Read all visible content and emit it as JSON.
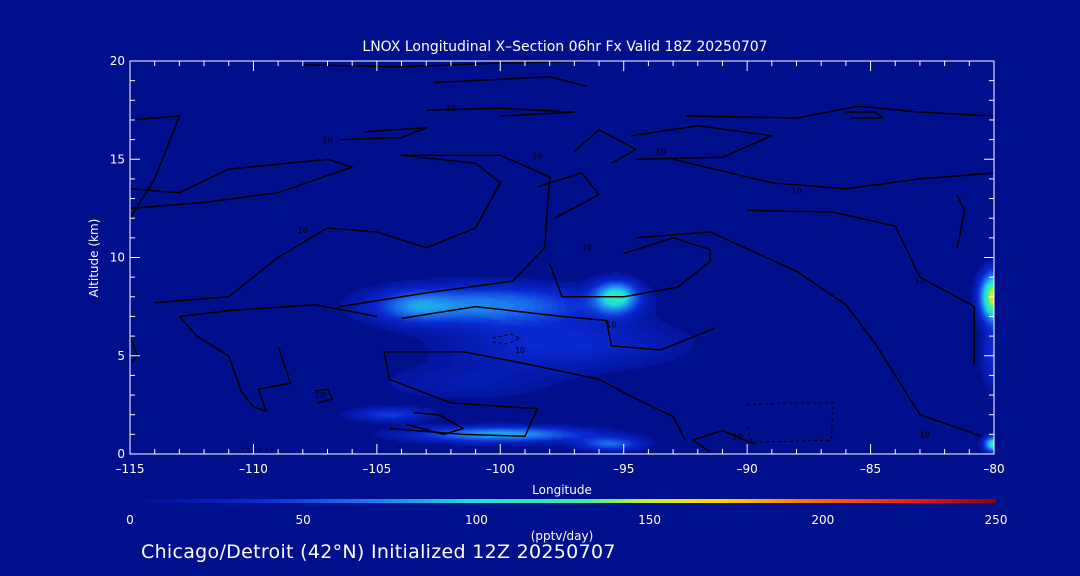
{
  "chart_data": {
    "type": "heatmap",
    "title": "LNOX Longitudinal X–Section 06hr  Fx Valid 18Z 20250707",
    "xlabel": "Longitude",
    "ylabel": "Altitude (km)",
    "xlim": [
      -115,
      -80
    ],
    "ylim": [
      0,
      20
    ],
    "x_ticks": [
      -115,
      -110,
      -105,
      -100,
      -95,
      -90,
      -85,
      -80
    ],
    "x_tick_labels": [
      "–115",
      "–110",
      "–105",
      "–100",
      "–95",
      "–90",
      "–85",
      "–80"
    ],
    "y_ticks": [
      0,
      5,
      10,
      15,
      20
    ],
    "y_tick_labels": [
      "0",
      "5",
      "10",
      "15",
      "20"
    ],
    "colorbar": {
      "label": "(pptv/day)",
      "range": [
        0,
        250
      ],
      "ticks": [
        0,
        50,
        100,
        150,
        200,
        250
      ],
      "tick_labels": [
        "0",
        "50",
        "100",
        "150",
        "200",
        "250"
      ]
    },
    "blobs": [
      {
        "lon": -100.5,
        "alt": 7.6,
        "slon": 4.2,
        "salt": 1.0,
        "amp": 70
      },
      {
        "lon": -97.5,
        "alt": 5.6,
        "slon": 4.6,
        "salt": 1.3,
        "amp": 38
      },
      {
        "lon": -101.5,
        "alt": 3.6,
        "slon": 3.8,
        "salt": 1.0,
        "amp": 18
      },
      {
        "lon": -95.3,
        "alt": 8.0,
        "slon": 0.9,
        "salt": 0.8,
        "amp": 105
      },
      {
        "lon": -103.5,
        "alt": 7.5,
        "slon": 1.5,
        "salt": 0.8,
        "amp": 40
      },
      {
        "lon": -100.0,
        "alt": 1.0,
        "slon": 3.5,
        "salt": 0.4,
        "amp": 85
      },
      {
        "lon": -95.5,
        "alt": 0.5,
        "slon": 1.3,
        "salt": 0.35,
        "amp": 60
      },
      {
        "lon": -104.5,
        "alt": 2.0,
        "slon": 1.6,
        "salt": 0.35,
        "amp": 45
      },
      {
        "lon": -80.0,
        "alt": 8.0,
        "slon": 0.55,
        "salt": 1.2,
        "amp": 160
      },
      {
        "lon": -80.0,
        "alt": 5.0,
        "slon": 0.5,
        "salt": 1.6,
        "amp": 40
      },
      {
        "lon": -80.0,
        "alt": 0.5,
        "slon": 0.4,
        "salt": 0.4,
        "amp": 120
      }
    ],
    "contours": [
      [
        [
          -115,
          17
        ],
        [
          -113,
          17.2
        ],
        [
          -114,
          14
        ],
        [
          -115,
          12
        ]
      ],
      [
        [
          -106.5,
          16
        ],
        [
          -104,
          16.1
        ],
        [
          -103,
          16.6
        ],
        [
          -105.5,
          16.4
        ]
      ],
      [
        [
          -103,
          17.5
        ],
        [
          -100,
          17.6
        ],
        [
          -97,
          17.4
        ],
        [
          -100,
          17.2
        ]
      ],
      [
        [
          -102.7,
          18.9
        ],
        [
          -98,
          19.2
        ],
        [
          -96.5,
          18.7
        ]
      ],
      [
        [
          -108,
          19.8
        ],
        [
          -104,
          19.7
        ],
        [
          -100,
          19.9
        ],
        [
          -96,
          20
        ]
      ],
      [
        [
          -115,
          13.5
        ],
        [
          -113,
          13.3
        ],
        [
          -111,
          14.5
        ],
        [
          -107,
          15.0
        ],
        [
          -106,
          14.6
        ],
        [
          -109,
          13.3
        ],
        [
          -112,
          12.8
        ],
        [
          -115,
          12.5
        ]
      ],
      [
        [
          -114,
          7.7
        ],
        [
          -111,
          8.0
        ],
        [
          -109,
          10.0
        ],
        [
          -107,
          11.5
        ],
        [
          -105,
          11.3
        ],
        [
          -103,
          10.5
        ],
        [
          -101,
          11.5
        ],
        [
          -100,
          13.8
        ],
        [
          -101,
          14.8
        ],
        [
          -104,
          15.2
        ],
        [
          -100,
          15.2
        ],
        [
          -98,
          14.1
        ],
        [
          -98.2,
          10.5
        ],
        [
          -99.5,
          8.8
        ],
        [
          -103,
          8.2
        ],
        [
          -106.5,
          7.5
        ]
      ],
      [
        [
          -97,
          15.4
        ],
        [
          -96,
          16.5
        ],
        [
          -94.5,
          15.5
        ],
        [
          -95.5,
          14.8
        ]
      ],
      [
        [
          -97.8,
          12.0
        ],
        [
          -96,
          13.2
        ],
        [
          -96.7,
          14.3
        ],
        [
          -98.5,
          13.6
        ]
      ],
      [
        [
          -94.7,
          16.2
        ],
        [
          -92,
          16.7
        ],
        [
          -89,
          16.2
        ],
        [
          -91,
          15.1
        ],
        [
          -94.5,
          15.0
        ]
      ],
      [
        [
          -92.5,
          17.2
        ],
        [
          -88,
          17.1
        ],
        [
          -85.5,
          17.7
        ],
        [
          -83,
          17.4
        ],
        [
          -80,
          17.2
        ]
      ],
      [
        [
          -86,
          17.4
        ],
        [
          -84.8,
          17.4
        ],
        [
          -84.5,
          17.1
        ],
        [
          -85.8,
          17.1
        ]
      ],
      [
        [
          -95,
          10.2
        ],
        [
          -93,
          11.0
        ],
        [
          -91.5,
          10.4
        ],
        [
          -91.5,
          9.8
        ],
        [
          -92.8,
          8.5
        ],
        [
          -95,
          8.0
        ],
        [
          -97.5,
          8.0
        ],
        [
          -98,
          9.7
        ]
      ],
      [
        [
          -93,
          15.0
        ],
        [
          -89,
          13.8
        ],
        [
          -86,
          13.5
        ],
        [
          -83,
          14.0
        ],
        [
          -81,
          14.2
        ],
        [
          -80,
          14.3
        ]
      ],
      [
        [
          -90,
          12.4
        ],
        [
          -86.5,
          12.3
        ],
        [
          -84,
          11.6
        ],
        [
          -83,
          9.0
        ],
        [
          -80.8,
          7.5
        ],
        [
          -80.8,
          4.6
        ]
      ],
      [
        [
          -94.5,
          11.0
        ],
        [
          -91.5,
          11.3
        ],
        [
          -88,
          9.3
        ],
        [
          -86,
          7.6
        ],
        [
          -84.8,
          5.6
        ],
        [
          -83,
          2.0
        ],
        [
          -80.5,
          0.9
        ]
      ],
      [
        [
          -104,
          6.9
        ],
        [
          -101,
          7.5
        ],
        [
          -97.5,
          7.0
        ],
        [
          -95.7,
          6.8
        ],
        [
          -95.5,
          5.5
        ],
        [
          -93.5,
          5.3
        ],
        [
          -91.3,
          6.4
        ]
      ],
      [
        [
          -109,
          5.5
        ],
        [
          -108.5,
          3.6
        ],
        [
          -109.8,
          3.3
        ],
        [
          -109.5,
          2.2
        ],
        [
          -110,
          2.4
        ],
        [
          -110.5,
          3.2
        ],
        [
          -111,
          5.0
        ],
        [
          -112.3,
          6.0
        ],
        [
          -113,
          7.0
        ],
        [
          -111,
          7.3
        ],
        [
          -107.5,
          7.6
        ],
        [
          -105,
          7.0
        ]
      ],
      [
        [
          -104.5,
          1.3
        ],
        [
          -101.5,
          1.0
        ],
        [
          -99,
          0.9
        ],
        [
          -98.5,
          2.3
        ],
        [
          -102,
          2.6
        ],
        [
          -104.5,
          3.8
        ],
        [
          -104.7,
          5.2
        ],
        [
          -101.5,
          5.2
        ],
        [
          -99.0,
          4.6
        ],
        [
          -96,
          3.8
        ],
        [
          -94.8,
          3.0
        ],
        [
          -93.0,
          1.9
        ],
        [
          -92.5,
          0.7
        ]
      ],
      [
        [
          -103.5,
          2.1
        ],
        [
          -102.5,
          2.0
        ],
        [
          -101.5,
          1.3
        ],
        [
          -102.3,
          1.0
        ],
        [
          -103.8,
          1.5
        ]
      ],
      [
        [
          -91.5,
          0.1
        ],
        [
          -92.2,
          0.7
        ],
        [
          -91,
          1.2
        ],
        [
          -89.7,
          0.5
        ]
      ],
      [
        [
          -107.5,
          3.2
        ],
        [
          -107,
          3.3
        ],
        [
          -106.8,
          2.8
        ],
        [
          -107.4,
          2.6
        ]
      ],
      [
        [
          -115,
          6.0
        ],
        [
          -114.7,
          5.0
        ],
        [
          -114.9,
          4.7
        ]
      ],
      [
        [
          -81.5,
          13.2
        ],
        [
          -81.2,
          12.4
        ],
        [
          -81.4,
          11.0
        ],
        [
          -81.5,
          10.5
        ]
      ]
    ],
    "dashed_contours": [
      [
        [
          -100.3,
          5.9
        ],
        [
          -99.6,
          6.1
        ],
        [
          -99.2,
          5.9
        ],
        [
          -99.7,
          5.6
        ],
        [
          -100.3,
          5.7
        ]
      ],
      [
        [
          -110.5,
          0.3
        ],
        [
          -108.9,
          0.2
        ]
      ],
      [
        [
          -90.0,
          2.5
        ],
        [
          -88.5,
          2.6
        ],
        [
          -86.5,
          2.6
        ],
        [
          -86.6,
          0.7
        ],
        [
          -89.8,
          0.6
        ],
        [
          -90,
          1.4
        ]
      ]
    ],
    "contour_labels": [
      {
        "lon": -107.0,
        "alt": 16.0,
        "text": "10"
      },
      {
        "lon": -102.0,
        "alt": 17.6,
        "text": "10"
      },
      {
        "lon": -93.5,
        "alt": 15.4,
        "text": "10"
      },
      {
        "lon": -98.5,
        "alt": 15.2,
        "text": "10"
      },
      {
        "lon": -88.0,
        "alt": 13.4,
        "text": "10"
      },
      {
        "lon": -108.0,
        "alt": 11.4,
        "text": "10"
      },
      {
        "lon": -96.5,
        "alt": 10.5,
        "text": "10"
      },
      {
        "lon": -83.0,
        "alt": 8.8,
        "text": "10"
      },
      {
        "lon": -95.5,
        "alt": 6.6,
        "text": "10"
      },
      {
        "lon": -107.3,
        "alt": 3.0,
        "text": "10"
      },
      {
        "lon": -90.4,
        "alt": 0.9,
        "text": "10"
      },
      {
        "lon": -82.8,
        "alt": 1.0,
        "text": "10"
      },
      {
        "lon": -99.2,
        "alt": 5.3,
        "text": "10"
      }
    ]
  },
  "footer": "Chicago/Detroit (42°N) Initialized 12Z 20250707"
}
